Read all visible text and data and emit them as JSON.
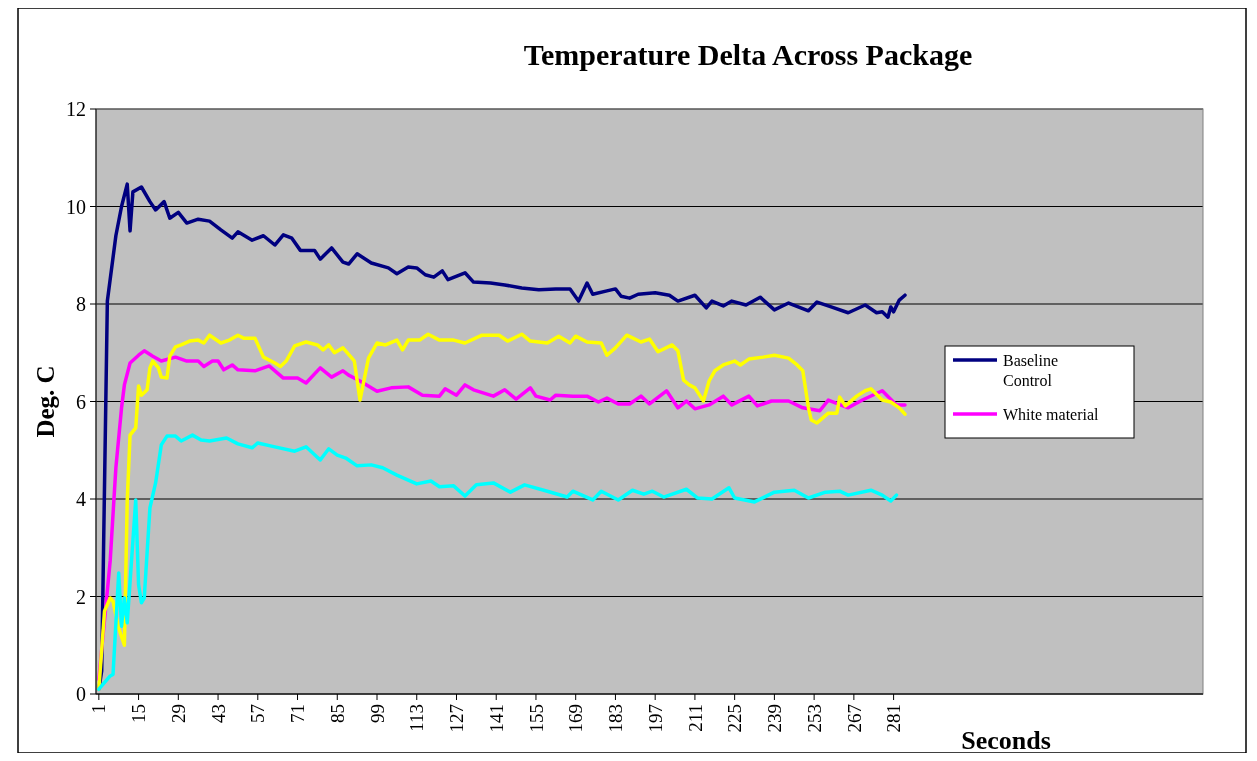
{
  "chart_data": {
    "type": "line",
    "title": "Temperature Delta Across Package",
    "xlabel": "Seconds",
    "ylabel": "Deg. C",
    "xlim": [
      0,
      390
    ],
    "xticks": [
      1,
      15,
      29,
      43,
      57,
      71,
      85,
      99,
      113,
      127,
      141,
      155,
      169,
      183,
      197,
      211,
      225,
      239,
      253,
      267,
      281
    ],
    "ylim": [
      0,
      12
    ],
    "yticks": [
      0,
      2,
      4,
      6,
      8,
      10,
      12
    ],
    "grid": "y",
    "legend": "right",
    "line_style": "solid",
    "marker": "none",
    "series": [
      {
        "name": "Baseline Control",
        "color": "#000080",
        "x": [
          1,
          2,
          4,
          7,
          9,
          11,
          12,
          13,
          16,
          19,
          21,
          24,
          26,
          29,
          32,
          36,
          40,
          44,
          48,
          50,
          55,
          59,
          63,
          66,
          69,
          72,
          77,
          79,
          83,
          87,
          89,
          92,
          97,
          103,
          106,
          110,
          113,
          116,
          119,
          122,
          124,
          130,
          133,
          139,
          144,
          150,
          156,
          162,
          167,
          170,
          173,
          175,
          180,
          183,
          185,
          188,
          191,
          197,
          202,
          205,
          211,
          215,
          217,
          221,
          224,
          229,
          234,
          239,
          244,
          251,
          254,
          259,
          265,
          271,
          275,
          277,
          279,
          280,
          281,
          283,
          285
        ],
        "values": [
          0.1,
          0.47,
          8.06,
          9.4,
          10.0,
          10.46,
          9.5,
          10.3,
          10.4,
          10.1,
          9.93,
          10.1,
          9.76,
          9.88,
          9.66,
          9.74,
          9.7,
          9.52,
          9.35,
          9.48,
          9.31,
          9.4,
          9.21,
          9.42,
          9.35,
          9.1,
          9.1,
          8.92,
          9.15,
          8.86,
          8.82,
          9.03,
          8.84,
          8.74,
          8.62,
          8.76,
          8.74,
          8.6,
          8.55,
          8.68,
          8.5,
          8.64,
          8.45,
          8.43,
          8.39,
          8.33,
          8.29,
          8.31,
          8.31,
          8.06,
          8.43,
          8.2,
          8.27,
          8.31,
          8.16,
          8.12,
          8.2,
          8.23,
          8.18,
          8.06,
          8.18,
          7.92,
          8.06,
          7.96,
          8.06,
          7.98,
          8.14,
          7.88,
          8.02,
          7.86,
          8.04,
          7.94,
          7.82,
          7.98,
          7.82,
          7.84,
          7.73,
          7.94,
          7.84,
          8.08,
          8.18
        ]
      },
      {
        "name": "White material",
        "color": "#ff00ff",
        "x": [
          1,
          5,
          7,
          9,
          10,
          12,
          15,
          17,
          20,
          23,
          28,
          32,
          36,
          38,
          41,
          43,
          45,
          48,
          50,
          56,
          61,
          66,
          71,
          74,
          79,
          83,
          87,
          89,
          93,
          99,
          104,
          110,
          115,
          121,
          123,
          127,
          130,
          133,
          140,
          144,
          148,
          153,
          155,
          160,
          162,
          168,
          173,
          177,
          180,
          184,
          188,
          192,
          195,
          201,
          205,
          208,
          211,
          216,
          221,
          224,
          230,
          233,
          238,
          244,
          249,
          255,
          258,
          265,
          270,
          277,
          282,
          285
        ],
        "values": [
          0.3,
          2.73,
          4.64,
          5.87,
          6.34,
          6.79,
          6.95,
          7.04,
          6.93,
          6.83,
          6.91,
          6.83,
          6.83,
          6.72,
          6.83,
          6.83,
          6.65,
          6.75,
          6.65,
          6.63,
          6.73,
          6.48,
          6.48,
          6.38,
          6.69,
          6.5,
          6.63,
          6.54,
          6.42,
          6.21,
          6.28,
          6.3,
          6.13,
          6.11,
          6.26,
          6.13,
          6.34,
          6.24,
          6.11,
          6.24,
          6.05,
          6.28,
          6.11,
          6.03,
          6.13,
          6.11,
          6.11,
          5.99,
          6.07,
          5.95,
          5.95,
          6.11,
          5.95,
          6.22,
          5.87,
          6.01,
          5.85,
          5.93,
          6.11,
          5.93,
          6.11,
          5.91,
          6.01,
          6.01,
          5.87,
          5.81,
          6.03,
          5.87,
          6.03,
          6.22,
          5.93,
          5.93
        ]
      },
      {
        "color": "#ffff00",
        "x": [
          1,
          3,
          5,
          6,
          8,
          10,
          11,
          12,
          14,
          15,
          16,
          18,
          19,
          20,
          22,
          23,
          25,
          26,
          28,
          30,
          33,
          36,
          38,
          40,
          44,
          47,
          50,
          52,
          56,
          59,
          63,
          65,
          67,
          70,
          74,
          78,
          80,
          82,
          84,
          87,
          90,
          91,
          93,
          96,
          99,
          102,
          106,
          108,
          110,
          114,
          117,
          121,
          126,
          130,
          136,
          142,
          145,
          150,
          153,
          159,
          163,
          167,
          169,
          173,
          178,
          180,
          183,
          187,
          192,
          195,
          198,
          203,
          205,
          207,
          209,
          211,
          214,
          216,
          218,
          221,
          225,
          227,
          230,
          235,
          239,
          244,
          247,
          249,
          251,
          252,
          254,
          258,
          261,
          262,
          264,
          268,
          271,
          273,
          277,
          280,
          283,
          285
        ],
        "values": [
          0.1,
          1.7,
          1.97,
          1.9,
          1.35,
          1.0,
          3.96,
          5.31,
          5.46,
          6.32,
          6.13,
          6.24,
          6.69,
          6.83,
          6.69,
          6.5,
          6.48,
          6.93,
          7.12,
          7.16,
          7.24,
          7.26,
          7.2,
          7.36,
          7.2,
          7.26,
          7.36,
          7.3,
          7.3,
          6.91,
          6.79,
          6.72,
          6.83,
          7.14,
          7.22,
          7.16,
          7.06,
          7.16,
          7.0,
          7.1,
          6.9,
          6.83,
          6.03,
          6.89,
          7.2,
          7.16,
          7.26,
          7.06,
          7.26,
          7.26,
          7.38,
          7.26,
          7.26,
          7.2,
          7.36,
          7.36,
          7.24,
          7.38,
          7.24,
          7.2,
          7.34,
          7.2,
          7.34,
          7.22,
          7.2,
          6.95,
          7.1,
          7.36,
          7.22,
          7.28,
          7.02,
          7.16,
          7.04,
          6.44,
          6.34,
          6.28,
          6.01,
          6.42,
          6.63,
          6.75,
          6.83,
          6.75,
          6.87,
          6.91,
          6.95,
          6.89,
          6.75,
          6.63,
          5.87,
          5.62,
          5.56,
          5.76,
          5.76,
          6.09,
          5.91,
          6.11,
          6.22,
          6.26,
          6.03,
          5.99,
          5.87,
          5.74
        ]
      },
      {
        "color": "#00ffff",
        "x": [
          1,
          5,
          6,
          8,
          9,
          10,
          11,
          14,
          15,
          16,
          17,
          19,
          21,
          23,
          25,
          28,
          30,
          34,
          37,
          40,
          46,
          50,
          55,
          57,
          63,
          70,
          74,
          79,
          82,
          85,
          88,
          92,
          97,
          101,
          106,
          113,
          118,
          121,
          126,
          130,
          134,
          140,
          146,
          151,
          159,
          166,
          168,
          175,
          178,
          184,
          189,
          193,
          196,
          200,
          208,
          212,
          217,
          223,
          225,
          232,
          239,
          246,
          251,
          257,
          262,
          265,
          273,
          277,
          280,
          282
        ],
        "values": [
          0.1,
          0.37,
          0.4,
          2.48,
          1.39,
          1.97,
          1.46,
          3.98,
          2.24,
          1.87,
          1.97,
          3.82,
          4.33,
          5.11,
          5.29,
          5.29,
          5.19,
          5.31,
          5.21,
          5.19,
          5.25,
          5.13,
          5.05,
          5.15,
          5.07,
          4.98,
          5.07,
          4.8,
          5.03,
          4.9,
          4.84,
          4.68,
          4.7,
          4.64,
          4.49,
          4.31,
          4.37,
          4.25,
          4.27,
          4.06,
          4.29,
          4.33,
          4.14,
          4.29,
          4.16,
          4.04,
          4.16,
          3.98,
          4.16,
          3.98,
          4.18,
          4.1,
          4.16,
          4.04,
          4.2,
          4.02,
          4.0,
          4.23,
          4.02,
          3.94,
          4.14,
          4.18,
          4.02,
          4.14,
          4.16,
          4.08,
          4.18,
          4.08,
          3.96,
          4.08
        ]
      }
    ]
  }
}
